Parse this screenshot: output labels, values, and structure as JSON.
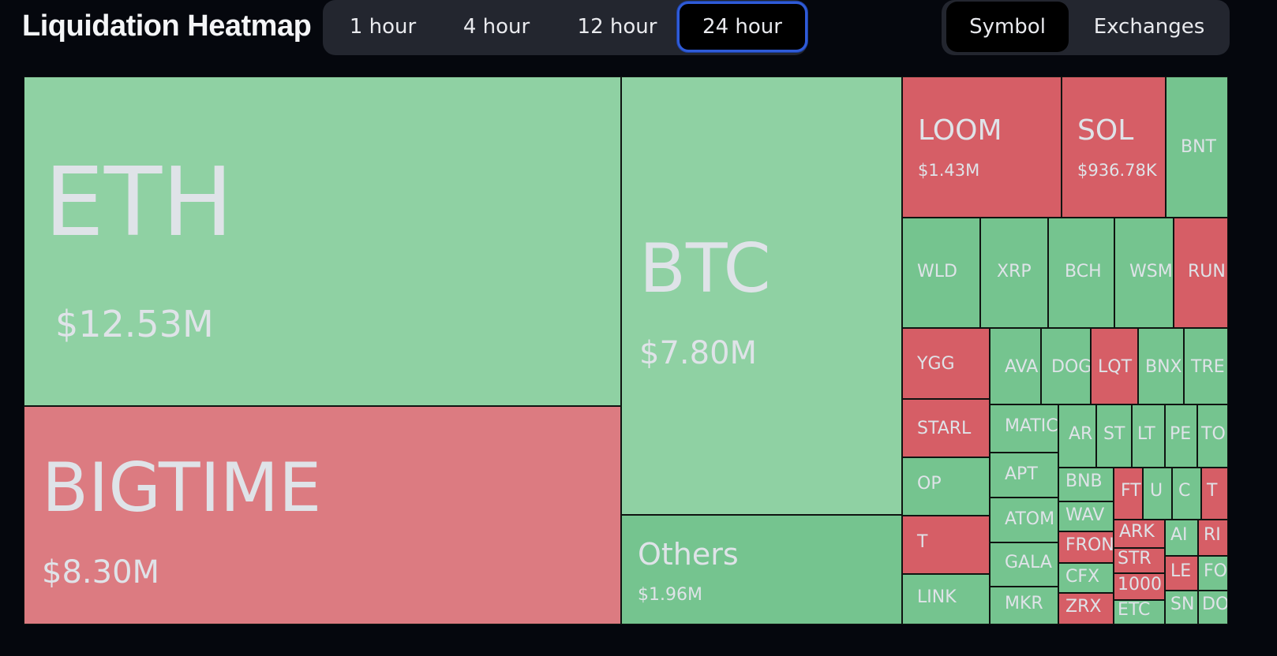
{
  "header": {
    "title": "Liquidation Heatmap"
  },
  "time_tabs": [
    {
      "label": "1 hour",
      "active": false
    },
    {
      "label": "4 hour",
      "active": false
    },
    {
      "label": "12 hour",
      "active": false
    },
    {
      "label": "24 hour",
      "active": true
    }
  ],
  "view_tabs": [
    {
      "label": "Symbol",
      "active": true
    },
    {
      "label": "Exchanges",
      "active": false
    }
  ],
  "colors": {
    "long": "#75c48f",
    "short": "#d65e66",
    "long_light": "#8fd1a3",
    "short_light": "#dc7b81"
  },
  "tiles": [
    {
      "symbol": "ETH",
      "value": "$12.53M",
      "side": "long"
    },
    {
      "symbol": "BIGTIME",
      "value": "$8.30M",
      "side": "short"
    },
    {
      "symbol": "BTC",
      "value": "$7.80M",
      "side": "long"
    },
    {
      "symbol": "Others",
      "value": "$1.96M",
      "side": "long"
    },
    {
      "symbol": "LOOM",
      "value": "$1.43M",
      "side": "short"
    },
    {
      "symbol": "SOL",
      "value": "$936.78K",
      "side": "short"
    },
    {
      "symbol": "BNT",
      "value": "",
      "side": "long"
    },
    {
      "symbol": "WLD",
      "value": "",
      "side": "long"
    },
    {
      "symbol": "XRP",
      "value": "",
      "side": "long"
    },
    {
      "symbol": "BCH",
      "value": "",
      "side": "long"
    },
    {
      "symbol": "WSM",
      "value": "",
      "side": "long"
    },
    {
      "symbol": "RUNE",
      "value": "",
      "side": "short"
    },
    {
      "symbol": "YGG",
      "value": "",
      "side": "short"
    },
    {
      "symbol": "AVA",
      "value": "",
      "side": "long"
    },
    {
      "symbol": "DOG",
      "value": "",
      "side": "long"
    },
    {
      "symbol": "LQT",
      "value": "",
      "side": "short"
    },
    {
      "symbol": "BNX",
      "value": "",
      "side": "long"
    },
    {
      "symbol": "TRE",
      "value": "",
      "side": "long"
    },
    {
      "symbol": "STARL",
      "value": "",
      "side": "short"
    },
    {
      "symbol": "MATIC",
      "value": "",
      "side": "long"
    },
    {
      "symbol": "AR",
      "value": "",
      "side": "long"
    },
    {
      "symbol": "ST",
      "value": "",
      "side": "long"
    },
    {
      "symbol": "LT",
      "value": "",
      "side": "long"
    },
    {
      "symbol": "PE",
      "value": "",
      "side": "long"
    },
    {
      "symbol": "TO",
      "value": "",
      "side": "long"
    },
    {
      "symbol": "OP",
      "value": "",
      "side": "long"
    },
    {
      "symbol": "APT",
      "value": "",
      "side": "long"
    },
    {
      "symbol": "BNB",
      "value": "",
      "side": "long"
    },
    {
      "symbol": "WAV",
      "value": "",
      "side": "long"
    },
    {
      "symbol": "FT",
      "value": "",
      "side": "short"
    },
    {
      "symbol": "U",
      "value": "",
      "side": "long"
    },
    {
      "symbol": "C",
      "value": "",
      "side": "long"
    },
    {
      "symbol": "T",
      "value": "",
      "side": "short"
    },
    {
      "symbol": "T",
      "value": "",
      "side": "short"
    },
    {
      "symbol": "ATOM",
      "value": "",
      "side": "long"
    },
    {
      "symbol": "FRON",
      "value": "",
      "side": "short"
    },
    {
      "symbol": "ARK",
      "value": "",
      "side": "short"
    },
    {
      "symbol": "AI",
      "value": "",
      "side": "long"
    },
    {
      "symbol": "RI",
      "value": "",
      "side": "short"
    },
    {
      "symbol": "GALA",
      "value": "",
      "side": "long"
    },
    {
      "symbol": "CFX",
      "value": "",
      "side": "long"
    },
    {
      "symbol": "STR",
      "value": "",
      "side": "short"
    },
    {
      "symbol": "LE",
      "value": "",
      "side": "short"
    },
    {
      "symbol": "FO",
      "value": "",
      "side": "long"
    },
    {
      "symbol": "LINK",
      "value": "",
      "side": "long"
    },
    {
      "symbol": "MKR",
      "value": "",
      "side": "long"
    },
    {
      "symbol": "ZRX",
      "value": "",
      "side": "short"
    },
    {
      "symbol": "1000",
      "value": "",
      "side": "short"
    },
    {
      "symbol": "ETC",
      "value": "",
      "side": "long"
    },
    {
      "symbol": "SN",
      "value": "",
      "side": "long"
    },
    {
      "symbol": "DO",
      "value": "",
      "side": "long"
    }
  ]
}
